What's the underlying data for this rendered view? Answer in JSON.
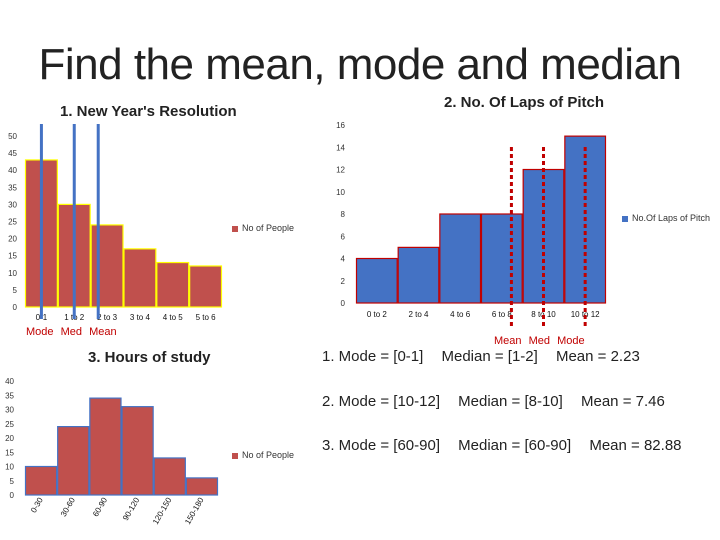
{
  "slide": {
    "title": "Find the mean, mode and median"
  },
  "chart_data": [
    {
      "id": "resolution",
      "type": "bar",
      "title": "1. New Year's Resolution",
      "categories": [
        "0-1",
        "1 to 2",
        "2 to 3",
        "3 to 4",
        "4 to 5",
        "5 to 6"
      ],
      "series": [
        {
          "name": "No of People",
          "values": [
            43,
            30,
            24,
            17,
            13,
            12
          ]
        }
      ],
      "ylim": [
        0,
        50
      ],
      "yticks": [
        0,
        5,
        10,
        15,
        20,
        25,
        30,
        35,
        40,
        45,
        50
      ],
      "bar_color": "#c0504d",
      "border_color": "#ffff00",
      "markers": [
        {
          "label": "Mode",
          "at": 0.5
        },
        {
          "label": "Med",
          "at": 1.5
        },
        {
          "label": "Mean",
          "at": 2.23
        }
      ],
      "marker_color": "#4472c4",
      "legend": "right"
    },
    {
      "id": "laps",
      "type": "bar",
      "title": "2. No. Of Laps of Pitch",
      "categories": [
        "0 to 2",
        "2 to 4",
        "4 to 6",
        "6 to 8",
        "8 to 10",
        "10 to 12"
      ],
      "series": [
        {
          "name": "No.Of Laps of Pitch",
          "values": [
            4,
            5,
            8,
            8,
            12,
            15
          ]
        }
      ],
      "ylim": [
        0,
        16
      ],
      "yticks": [
        0,
        2,
        4,
        6,
        8,
        10,
        12,
        14,
        16
      ],
      "bar_color": "#4472c4",
      "border_color": "#c00000",
      "markers": [
        {
          "label": "Mean",
          "at": 3.73
        },
        {
          "label": "Med",
          "at": 4.5
        },
        {
          "label": "Mode",
          "at": 5.5
        }
      ],
      "marker_color": "#c00000",
      "legend": "right"
    },
    {
      "id": "study",
      "type": "bar",
      "title": "3. Hours of study",
      "categories": [
        "0-30",
        "30-60",
        "60-90",
        "90-120",
        "120-150",
        "150-180"
      ],
      "series": [
        {
          "name": "No of People",
          "values": [
            10,
            24,
            34,
            31,
            13,
            6
          ]
        }
      ],
      "ylim": [
        0,
        40
      ],
      "yticks": [
        0,
        5,
        10,
        15,
        20,
        25,
        30,
        35,
        40
      ],
      "bar_color": "#c0504d",
      "border_color": "#4472c4",
      "legend": "right"
    }
  ],
  "results": [
    {
      "mode": "1. Mode = [0-1]",
      "median": "Median = [1-2]",
      "mean": "Mean = 2.23"
    },
    {
      "mode": "2. Mode = [10-12]",
      "median": "Median = [8-10]",
      "mean": "Mean = 7.46"
    },
    {
      "mode": "3. Mode = [60-90]",
      "median": "Median = [60-90]",
      "mean": "Mean = 82.88"
    }
  ]
}
